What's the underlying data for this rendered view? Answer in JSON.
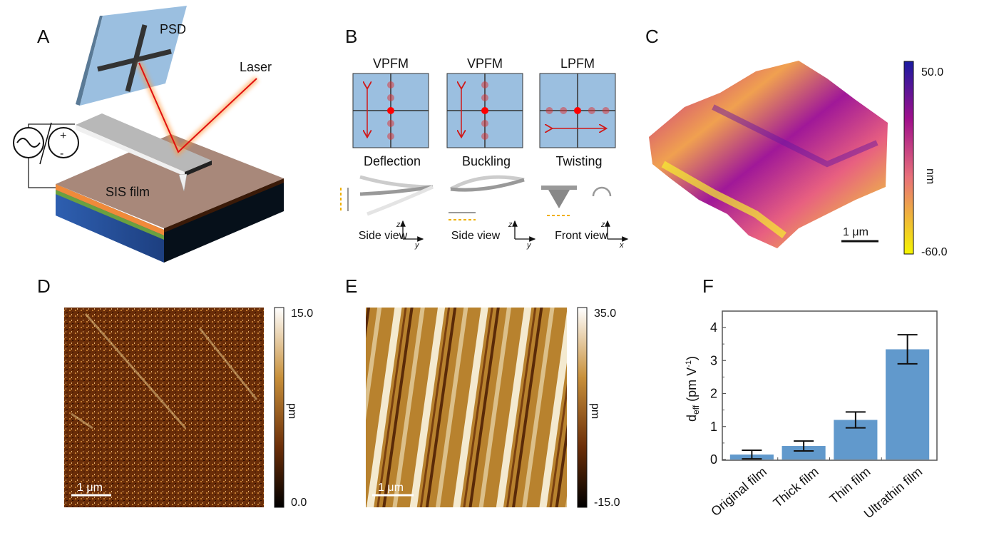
{
  "panels": {
    "A": {
      "letter": "A",
      "psd": "PSD",
      "laser": "Laser",
      "film": "SIS film",
      "plus": "+",
      "minus": "-"
    },
    "B": {
      "letter": "B",
      "modes": [
        {
          "title": "VPFM",
          "motion": "Deflection",
          "view": "Side view",
          "axis_v": "z",
          "axis_h": "y"
        },
        {
          "title": "VPFM",
          "motion": "Buckling",
          "view": "Side view",
          "axis_v": "z",
          "axis_h": "y"
        },
        {
          "title": "LPFM",
          "motion": "Twisting",
          "view": "Front view",
          "axis_v": "z",
          "axis_h": "x"
        }
      ]
    },
    "C": {
      "letter": "C",
      "cb_max": "50.0",
      "cb_min": "-60.0",
      "unit": "nm",
      "scale": "1 μm"
    },
    "D": {
      "letter": "D",
      "cb_max": "15.0",
      "cb_min": "0.0",
      "unit": "pm",
      "scale": "1 μm"
    },
    "E": {
      "letter": "E",
      "cb_max": "35.0",
      "cb_min": "-15.0",
      "unit": "pm",
      "scale": "1 μm"
    },
    "F": {
      "letter": "F"
    }
  },
  "colors": {
    "bar": "#6199cc",
    "laser": "#e01010",
    "psd": "#9bbfe0"
  },
  "chart_data": {
    "type": "bar",
    "title": "",
    "categories": [
      "Original film",
      "Thick film",
      "Thin film",
      "Ultrathin film"
    ],
    "values": [
      0.15,
      0.41,
      1.2,
      3.34
    ],
    "errors": [
      0.13,
      0.15,
      0.24,
      0.44
    ],
    "xlabel": "",
    "ylabel": "d_eff (pm V^-1)",
    "ylabel_main": "d",
    "ylabel_sub": "eff",
    "ylabel_rest": " (pm V",
    "ylabel_sup": "-1",
    "ylabel_end": ")",
    "ylim": [
      0,
      4.5
    ],
    "yticks": [
      "0",
      "1",
      "2",
      "3",
      "4"
    ],
    "grid": false
  }
}
